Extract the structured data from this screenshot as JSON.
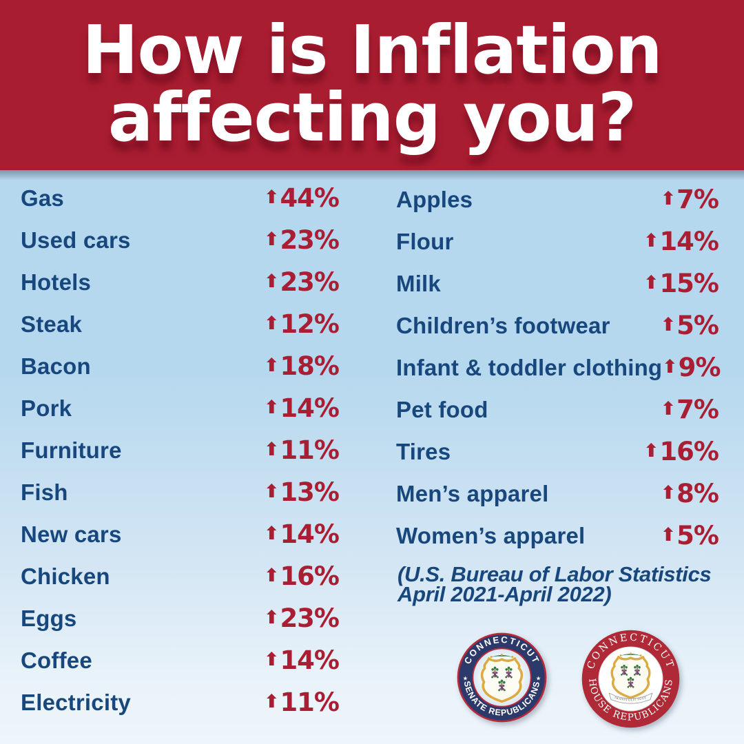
{
  "header": {
    "line1": "How is Inflation",
    "line2": "affecting you?"
  },
  "items_left": [
    {
      "label": "Gas",
      "value": "44%"
    },
    {
      "label": "Used cars",
      "value": "23%"
    },
    {
      "label": "Hotels",
      "value": "23%"
    },
    {
      "label": "Steak",
      "value": "12%"
    },
    {
      "label": "Bacon",
      "value": "18%"
    },
    {
      "label": "Pork",
      "value": "14%"
    },
    {
      "label": "Furniture",
      "value": "11%"
    },
    {
      "label": "Fish",
      "value": "13%"
    },
    {
      "label": "New cars",
      "value": "14%"
    },
    {
      "label": "Chicken",
      "value": "16%"
    },
    {
      "label": "Eggs",
      "value": "23%"
    },
    {
      "label": "Coffee",
      "value": "14%"
    },
    {
      "label": "Electricity",
      "value": "11%"
    }
  ],
  "items_right": [
    {
      "label": "Apples",
      "value": "7%"
    },
    {
      "label": "Flour",
      "value": "14%"
    },
    {
      "label": "Milk",
      "value": "15%"
    },
    {
      "label": "Children’s footwear",
      "value": "5%"
    },
    {
      "label": "Infant & toddler clothing",
      "value": "9%"
    },
    {
      "label": "Pet food",
      "value": "7%"
    },
    {
      "label": "Tires",
      "value": "16%"
    },
    {
      "label": "Men’s apparel",
      "value": "8%"
    },
    {
      "label": "Women’s apparel",
      "value": "5%"
    }
  ],
  "source_note": {
    "line1": "(U.S. Bureau of Labor Statistics",
    "line2": "April 2021-April 2022)"
  },
  "icons": {
    "up_arrow": "⬆",
    "star": "★"
  },
  "seals": {
    "senate": {
      "top_text": "CONNECTICUT",
      "bottom_text": "SENATE REPUBLICANS"
    },
    "house": {
      "top_text": "CONNECTICUT",
      "bottom_text": "HOUSE REPUBLICANS",
      "ribbon_text": "QUI TRANSTULIT SUSTINET"
    }
  },
  "colors": {
    "banner_red": "#a91d31",
    "percent_red": "#a91e33",
    "label_navy": "#17477c",
    "background_top": "#b6d8ee",
    "background_bottom": "#eef5fb",
    "seal_navy": "#2c3a6b",
    "seal_crimson": "#b02936",
    "seal_gold": "#dcaa43"
  },
  "chart_data": {
    "type": "table",
    "title": "How is Inflation affecting you?",
    "unit": "percent price increase",
    "items": [
      {
        "category": "Gas",
        "change_pct": 44
      },
      {
        "category": "Used cars",
        "change_pct": 23
      },
      {
        "category": "Hotels",
        "change_pct": 23
      },
      {
        "category": "Steak",
        "change_pct": 12
      },
      {
        "category": "Bacon",
        "change_pct": 18
      },
      {
        "category": "Pork",
        "change_pct": 14
      },
      {
        "category": "Furniture",
        "change_pct": 11
      },
      {
        "category": "Fish",
        "change_pct": 13
      },
      {
        "category": "New cars",
        "change_pct": 14
      },
      {
        "category": "Chicken",
        "change_pct": 16
      },
      {
        "category": "Eggs",
        "change_pct": 23
      },
      {
        "category": "Coffee",
        "change_pct": 14
      },
      {
        "category": "Electricity",
        "change_pct": 11
      },
      {
        "category": "Apples",
        "change_pct": 7
      },
      {
        "category": "Flour",
        "change_pct": 14
      },
      {
        "category": "Milk",
        "change_pct": 15
      },
      {
        "category": "Children’s footwear",
        "change_pct": 5
      },
      {
        "category": "Infant & toddler clothing",
        "change_pct": 9
      },
      {
        "category": "Pet food",
        "change_pct": 7
      },
      {
        "category": "Tires",
        "change_pct": 16
      },
      {
        "category": "Men’s apparel",
        "change_pct": 8
      },
      {
        "category": "Women’s apparel",
        "change_pct": 5
      }
    ],
    "source": "(U.S. Bureau of Labor Statistics April 2021-April 2022)"
  }
}
